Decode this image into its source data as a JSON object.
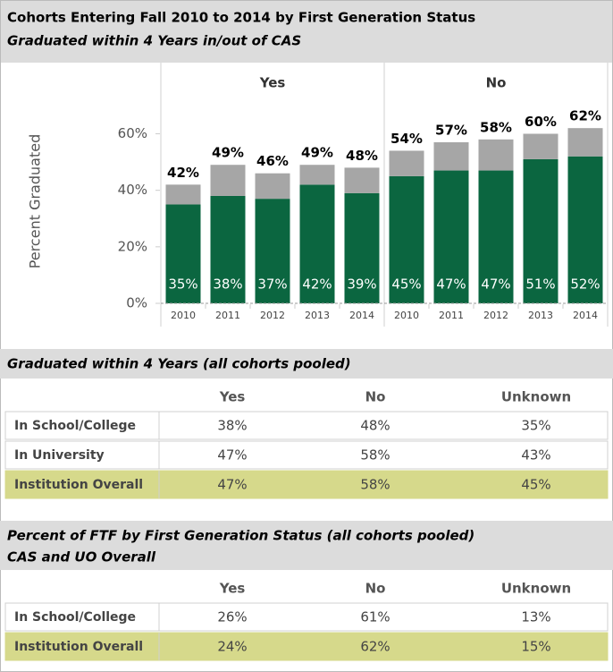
{
  "chart_data": {
    "type": "stacked-bar",
    "title": "Cohorts Entering Fall 2010 to 2014 by First Generation Status",
    "subtitle": "Graduated within 4 Years in/out of CAS",
    "ylabel": "Percent Graduated",
    "ylim": [
      0,
      82
    ],
    "yticks": [
      {
        "value": 0,
        "label": "0%"
      },
      {
        "value": 20,
        "label": "20%"
      },
      {
        "value": 40,
        "label": "40%"
      },
      {
        "value": 60,
        "label": "60%"
      }
    ],
    "panels": [
      {
        "label": "Yes",
        "categories": [
          "2010",
          "2011",
          "2012",
          "2013",
          "2014"
        ],
        "series": [
          {
            "color": "#0b6640",
            "values": [
              35,
              38,
              37,
              42,
              39
            ],
            "value_labels": [
              "35%",
              "38%",
              "37%",
              "42%",
              "39%"
            ]
          },
          {
            "color": "#a6a6a6",
            "values": [
              7,
              11,
              9,
              7,
              9
            ]
          }
        ],
        "totals": [
          42,
          49,
          46,
          49,
          48
        ],
        "total_labels": [
          "42%",
          "49%",
          "46%",
          "49%",
          "48%"
        ]
      },
      {
        "label": "No",
        "categories": [
          "2010",
          "2011",
          "2012",
          "2013",
          "2014"
        ],
        "series": [
          {
            "color": "#0b6640",
            "values": [
              45,
              47,
              47,
              51,
              52
            ],
            "value_labels": [
              "45%",
              "47%",
              "47%",
              "51%",
              "52%"
            ]
          },
          {
            "color": "#a6a6a6",
            "values": [
              9,
              10,
              11,
              9,
              10
            ]
          }
        ],
        "totals": [
          54,
          57,
          58,
          60,
          62
        ],
        "total_labels": [
          "54%",
          "57%",
          "58%",
          "60%",
          "62%"
        ]
      }
    ]
  },
  "tables": [
    {
      "title_lines": [
        "Graduated within 4 Years (all cohorts pooled)"
      ],
      "columns": [
        "Yes",
        "No",
        "Unknown"
      ],
      "rows": [
        {
          "label": "In School/College",
          "values": [
            "38%",
            "48%",
            "35%"
          ]
        },
        {
          "label": "In University",
          "values": [
            "47%",
            "58%",
            "43%"
          ]
        },
        {
          "label": "Institution Overall",
          "values": [
            "47%",
            "58%",
            "45%"
          ],
          "highlight": true
        }
      ]
    },
    {
      "title_lines": [
        "Percent of FTF by First Generation Status (all cohorts pooled)",
        "CAS and UO Overall"
      ],
      "columns": [
        "Yes",
        "No",
        "Unknown"
      ],
      "rows": [
        {
          "label": "In School/College",
          "values": [
            "26%",
            "61%",
            "13%"
          ]
        },
        {
          "label": "Institution Overall",
          "values": [
            "24%",
            "62%",
            "15%"
          ],
          "highlight": true
        }
      ]
    }
  ]
}
